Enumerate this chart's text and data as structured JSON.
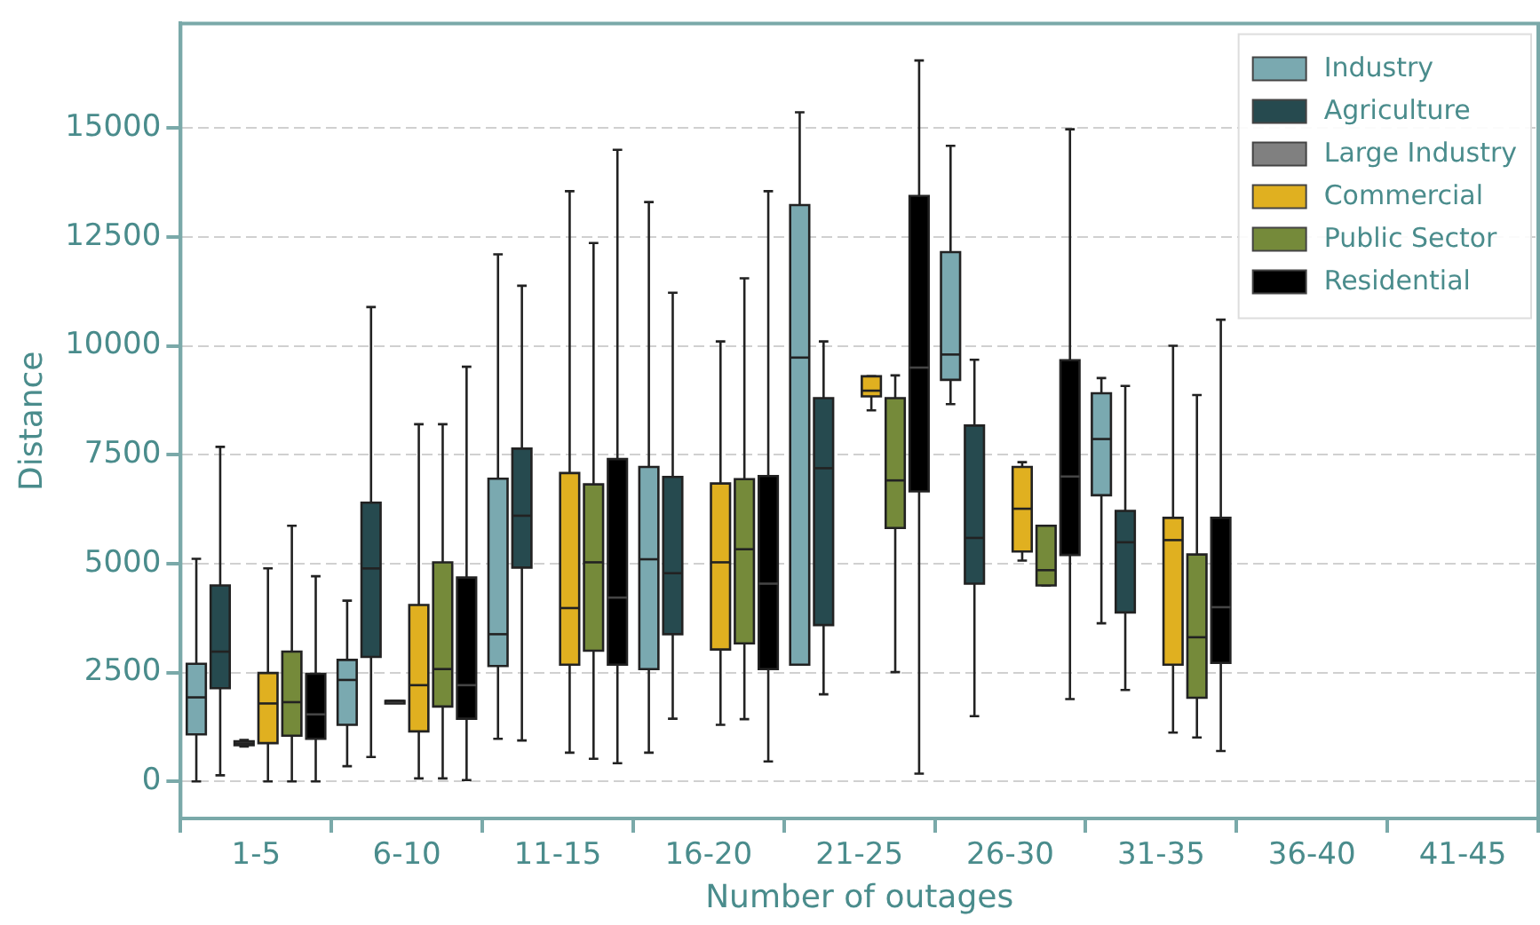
{
  "chart_data": {
    "type": "box",
    "xlabel": "Number of outages",
    "ylabel": "Distance",
    "categories": [
      "1-5",
      "6-10",
      "11-15",
      "16-20",
      "21-25",
      "26-30",
      "31-35",
      "36-40",
      "41-45"
    ],
    "ylim": [
      -850,
      17400
    ],
    "yticks": [
      0,
      2500,
      5000,
      7500,
      10000,
      12500,
      15000
    ],
    "grid": "y",
    "legend": "top right",
    "series": [
      {
        "name": "Industry",
        "color": "#7aa9b0",
        "boxes": [
          {
            "low": 0,
            "q1": 1080,
            "median": 1930,
            "q3": 2700,
            "high": 5110
          },
          {
            "low": 350,
            "q1": 1300,
            "median": 2330,
            "q3": 2790,
            "high": 4150
          },
          {
            "low": 980,
            "q1": 2650,
            "median": 3380,
            "q3": 6950,
            "high": 12100
          },
          {
            "low": 660,
            "q1": 2580,
            "median": 5100,
            "q3": 7220,
            "high": 13300
          },
          {
            "low": 2680,
            "q1": 2680,
            "median": 9730,
            "q3": 13230,
            "high": 15360
          },
          {
            "low": 8660,
            "q1": 9220,
            "median": 9800,
            "q3": 12150,
            "high": 14590
          },
          {
            "low": 3630,
            "q1": 6570,
            "median": 7860,
            "q3": 8910,
            "high": 9260
          },
          null,
          null
        ]
      },
      {
        "name": "Agriculture",
        "color": "#264a4f",
        "boxes": [
          {
            "low": 140,
            "q1": 2140,
            "median": 2980,
            "q3": 4500,
            "high": 7680
          },
          {
            "low": 560,
            "q1": 2860,
            "median": 4890,
            "q3": 6400,
            "high": 10890
          },
          {
            "low": 940,
            "q1": 4910,
            "median": 6100,
            "q3": 7640,
            "high": 11380
          },
          {
            "low": 1440,
            "q1": 3380,
            "median": 4780,
            "q3": 6990,
            "high": 11220
          },
          {
            "low": 2000,
            "q1": 3590,
            "median": 7190,
            "q3": 8800,
            "high": 10100
          },
          {
            "low": 1500,
            "q1": 4540,
            "median": 5590,
            "q3": 8170,
            "high": 9680
          },
          {
            "low": 2100,
            "q1": 3880,
            "median": 5490,
            "q3": 6210,
            "high": 9080
          },
          null,
          null
        ]
      },
      {
        "name": "Large Industry",
        "color": "#808080",
        "boxes": [
          {
            "low": 800,
            "q1": 830,
            "median": 870,
            "q3": 920,
            "high": 950
          },
          {
            "low": 1850,
            "q1": 1850,
            "median": 1850,
            "q3": 1850,
            "high": 1850
          },
          null,
          null,
          null,
          null,
          null,
          null,
          null
        ]
      },
      {
        "name": "Commercial",
        "color": "#e0b020",
        "boxes": [
          {
            "low": 0,
            "q1": 880,
            "median": 1790,
            "q3": 2490,
            "high": 4890
          },
          {
            "low": 70,
            "q1": 1150,
            "median": 2210,
            "q3": 4050,
            "high": 8200
          },
          {
            "low": 660,
            "q1": 2680,
            "median": 3980,
            "q3": 7080,
            "high": 13550
          },
          {
            "low": 1300,
            "q1": 3030,
            "median": 5030,
            "q3": 6840,
            "high": 10100
          },
          {
            "low": 8520,
            "q1": 8840,
            "median": 8970,
            "q3": 9300,
            "high": 9300
          },
          {
            "low": 5070,
            "q1": 5280,
            "median": 6260,
            "q3": 7220,
            "high": 7330
          },
          {
            "low": 1120,
            "q1": 2680,
            "median": 5540,
            "q3": 6050,
            "high": 10000
          },
          null,
          null
        ]
      },
      {
        "name": "Public Sector",
        "color": "#758a3a",
        "boxes": [
          {
            "low": 0,
            "q1": 1050,
            "median": 1820,
            "q3": 2980,
            "high": 5870
          },
          {
            "low": 70,
            "q1": 1720,
            "median": 2580,
            "q3": 5030,
            "high": 8200
          },
          {
            "low": 520,
            "q1": 3000,
            "median": 5030,
            "q3": 6820,
            "high": 12360
          },
          {
            "low": 1430,
            "q1": 3170,
            "median": 5330,
            "q3": 6940,
            "high": 11550
          },
          {
            "low": 2510,
            "q1": 5820,
            "median": 6910,
            "q3": 8800,
            "high": 9320
          },
          {
            "low": 4500,
            "q1": 4500,
            "median": 4850,
            "q3": 5870,
            "high": 5870
          },
          {
            "low": 1010,
            "q1": 1920,
            "median": 3310,
            "q3": 5210,
            "high": 8870
          },
          null,
          null
        ]
      },
      {
        "name": "Residential",
        "color": "#000000",
        "boxes": [
          {
            "low": 0,
            "q1": 980,
            "median": 1540,
            "q3": 2470,
            "high": 4710
          },
          {
            "low": 30,
            "q1": 1440,
            "median": 2210,
            "q3": 4680,
            "high": 9520
          },
          {
            "low": 420,
            "q1": 2680,
            "median": 4220,
            "q3": 7400,
            "high": 14500
          },
          {
            "low": 460,
            "q1": 2580,
            "median": 4540,
            "q3": 7010,
            "high": 13550
          },
          {
            "low": 180,
            "q1": 6660,
            "median": 9500,
            "q3": 13440,
            "high": 16550
          },
          {
            "low": 1890,
            "q1": 5200,
            "median": 7000,
            "q3": 9670,
            "high": 14970
          },
          {
            "low": 700,
            "q1": 2720,
            "median": 4000,
            "q3": 6050,
            "high": 10600
          },
          null,
          null
        ]
      }
    ]
  }
}
